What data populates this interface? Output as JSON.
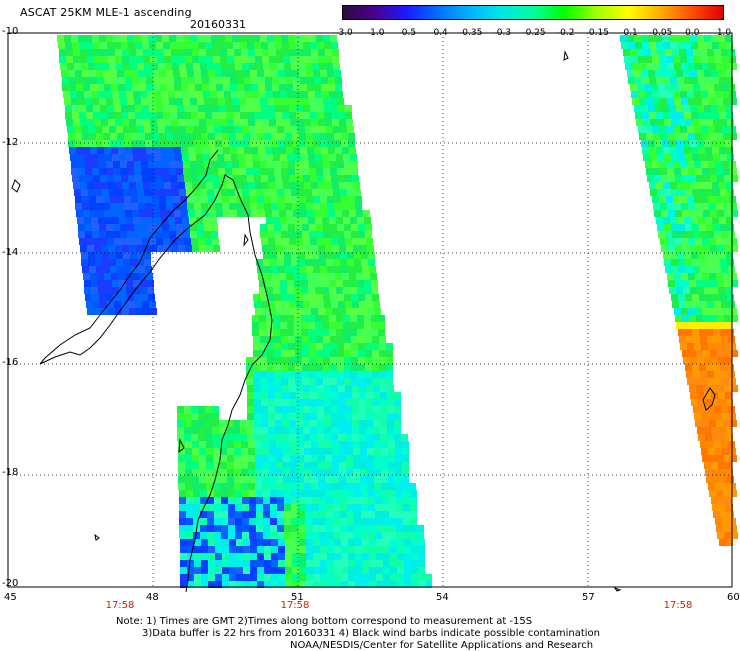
{
  "header": {
    "title": "ASCAT 25KM MLE-1 ascending",
    "date": "20160331"
  },
  "colorbar": {
    "labels": [
      "-3.0",
      "-1.0",
      "-0.5",
      "-0.4",
      "-0.35",
      "-0.3",
      "-0.25",
      "-0.2",
      "-0.15",
      "-0.1",
      "-0.05",
      "0.0",
      "1.0"
    ],
    "colors": [
      "#2b0b3d",
      "#4b0090",
      "#1a1aff",
      "#0070ff",
      "#00b4ff",
      "#00e6e6",
      "#00ffa0",
      "#00ff00",
      "#a0ff00",
      "#ffff00",
      "#ffb000",
      "#ff5000",
      "#e00000"
    ]
  },
  "axes": {
    "latitude_labels": [
      "-10",
      "-12",
      "-14",
      "-16",
      "-18",
      "-20"
    ],
    "longitude_labels": [
      "45",
      "48",
      "51",
      "54",
      "57",
      "60"
    ]
  },
  "pass_times": [
    "17:58",
    "17:58",
    "17:58"
  ],
  "notes": {
    "line1": "Note: 1) Times are GMT 2)Times along bottom correspond to measurement at -15S",
    "line2": "3)Data buffer is 22 hrs from 20160331 4) Black wind barbs indicate possible contamination",
    "line3": "NOAA/NESDIS/Center for Satellite Applications and Research"
  }
}
